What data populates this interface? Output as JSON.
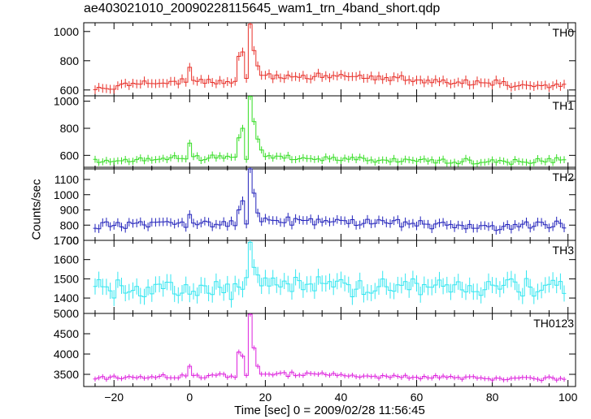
{
  "title": "ae403021010_20090228115645_wam1_trn_4band_short.qdp",
  "ylabel": "Counts/sec",
  "xlabel": "Time [sec] 0 = 2009/02/28 11:56:45",
  "chart_data": {
    "type": "line",
    "style": "step with error bars, stacked panels sharing the x-axis",
    "x_axis": {
      "label": "Time [sec] 0 = 2009/02/28 11:56:45",
      "range": [
        -28,
        102
      ],
      "ticks": [
        -20,
        0,
        20,
        40,
        60,
        80,
        100
      ],
      "tick_labels": [
        "−20",
        "0",
        "20",
        "40",
        "60",
        "80",
        "100"
      ]
    },
    "bin_width": 1,
    "panels": [
      {
        "name": "TH0",
        "color": "#e8312a",
        "ylim": [
          560,
          1060
        ],
        "yticks": [
          600,
          800,
          1000
        ],
        "ytick_labels": [
          "600",
          "800",
          "1000"
        ],
        "err": 30,
        "baseline": [
          [
            -25,
            615
          ],
          [
            -10,
            650
          ],
          [
            12,
            665
          ],
          [
            22,
            690
          ],
          [
            40,
            700
          ],
          [
            60,
            665
          ],
          [
            80,
            645
          ],
          [
            99,
            625
          ]
        ],
        "wiggle": 18,
        "spikes": [
          [
            0,
            755
          ],
          [
            13,
            830
          ],
          [
            14,
            860
          ],
          [
            16,
            1050
          ],
          [
            17,
            870
          ],
          [
            18,
            765
          ],
          [
            19,
            700
          ]
        ]
      },
      {
        "name": "TH1",
        "color": "#33dd22",
        "ylim": [
          500,
          1040
        ],
        "yticks": [
          600,
          800,
          1000
        ],
        "ytick_labels": [
          "600",
          "800",
          "1000"
        ],
        "err": 26,
        "baseline": [
          [
            -25,
            560
          ],
          [
            -10,
            570
          ],
          [
            12,
            585
          ],
          [
            22,
            585
          ],
          [
            50,
            565
          ],
          [
            80,
            555
          ],
          [
            99,
            560
          ]
        ],
        "wiggle": 16,
        "spikes": [
          [
            0,
            690
          ],
          [
            13,
            730
          ],
          [
            14,
            800
          ],
          [
            16,
            1035
          ],
          [
            17,
            850
          ],
          [
            18,
            720
          ],
          [
            19,
            640
          ]
        ]
      },
      {
        "name": "TH2",
        "color": "#2222bb",
        "ylim": [
          700,
          1180
        ],
        "yticks": [
          700,
          800,
          900,
          1000,
          1100
        ],
        "ytick_labels": [
          "700",
          "800",
          "900",
          "1000",
          "1100"
        ],
        "err": 28,
        "baseline": [
          [
            -25,
            800
          ],
          [
            -10,
            810
          ],
          [
            12,
            810
          ],
          [
            22,
            825
          ],
          [
            40,
            820
          ],
          [
            60,
            810
          ],
          [
            80,
            790
          ],
          [
            99,
            800
          ]
        ],
        "wiggle": 22,
        "spikes": [
          [
            0,
            870
          ],
          [
            13,
            900
          ],
          [
            14,
            960
          ],
          [
            16,
            1170
          ],
          [
            17,
            1010
          ],
          [
            18,
            880
          ]
        ]
      },
      {
        "name": "TH3",
        "color": "#33e6f0",
        "ylim": [
          1320,
          1700
        ],
        "yticks": [
          1400,
          1500,
          1600,
          1700
        ],
        "ytick_labels": [
          "1400",
          "1500",
          "1600",
          "1700"
        ],
        "err": 42,
        "baseline": [
          [
            -25,
            1450
          ],
          [
            -5,
            1440
          ],
          [
            12,
            1440
          ],
          [
            22,
            1480
          ],
          [
            40,
            1460
          ],
          [
            60,
            1470
          ],
          [
            80,
            1450
          ],
          [
            99,
            1440
          ]
        ],
        "wiggle": 40,
        "spikes": [
          [
            16,
            1690
          ],
          [
            17,
            1560
          ],
          [
            18,
            1520
          ]
        ]
      },
      {
        "name": "TH0123",
        "color": "#dd22dd",
        "ylim": [
          3200,
          5000
        ],
        "yticks": [
          3500,
          4000,
          4500,
          5000
        ],
        "ytick_labels": [
          "3500",
          "4000",
          "4500",
          "5000"
        ],
        "err": 60,
        "baseline": [
          [
            -25,
            3400
          ],
          [
            -10,
            3440
          ],
          [
            12,
            3460
          ],
          [
            22,
            3520
          ],
          [
            40,
            3480
          ],
          [
            60,
            3440
          ],
          [
            80,
            3410
          ],
          [
            99,
            3400
          ]
        ],
        "wiggle": 45,
        "spikes": [
          [
            0,
            3700
          ],
          [
            13,
            4050
          ],
          [
            14,
            3950
          ],
          [
            16,
            4980
          ],
          [
            17,
            4150
          ],
          [
            18,
            3700
          ]
        ]
      }
    ]
  }
}
